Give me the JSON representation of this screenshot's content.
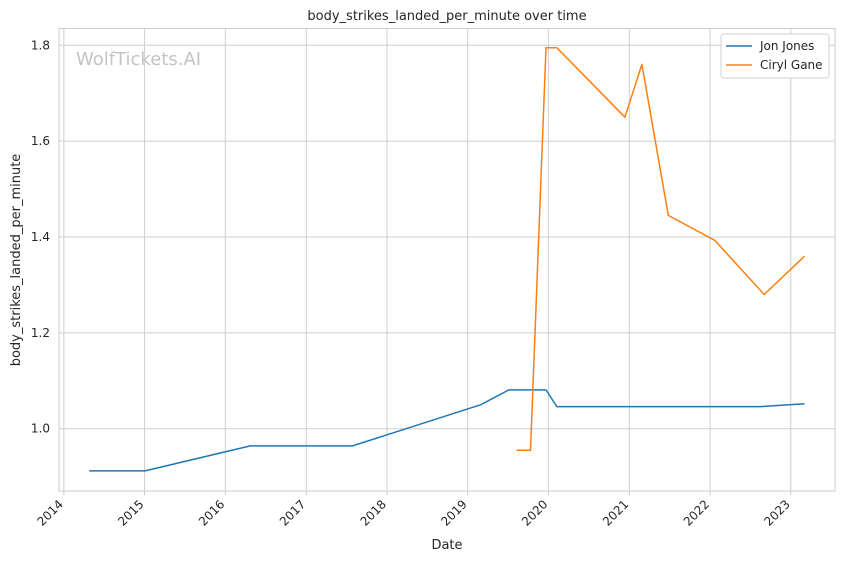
{
  "chart_data": {
    "type": "line",
    "title": "body_strikes_landed_per_minute over time",
    "xlabel": "Date",
    "ylabel": "body_strikes_landed_per_minute",
    "watermark": "WolfTickets.AI",
    "xlim": [
      "2013-12-10",
      "2023-07-20"
    ],
    "ylim": [
      0.87,
      1.835
    ],
    "x_ticks": [
      "2014-01-01",
      "2015-01-01",
      "2016-01-01",
      "2017-01-01",
      "2018-01-01",
      "2019-01-01",
      "2020-01-01",
      "2021-01-01",
      "2022-01-01",
      "2023-01-01"
    ],
    "x_tick_labels": [
      "2014",
      "2015",
      "2016",
      "2017",
      "2018",
      "2019",
      "2020",
      "2021",
      "2022",
      "2023"
    ],
    "y_ticks": [
      1.0,
      1.2,
      1.4,
      1.6,
      1.8
    ],
    "y_tick_labels": [
      "1.0",
      "1.2",
      "1.4",
      "1.6",
      "1.8"
    ],
    "grid": true,
    "legend_position": "top-right",
    "series": [
      {
        "name": "Jon Jones",
        "color": "#1f77b4",
        "x": [
          "2014-04-26",
          "2015-01-03",
          "2016-04-23",
          "2017-07-29",
          "2019-03-02",
          "2019-07-06",
          "2019-12-21",
          "2020-02-08",
          "2022-08-20",
          "2023-03-04"
        ],
        "y": [
          0.912,
          0.912,
          0.964,
          0.964,
          1.05,
          1.081,
          1.081,
          1.046,
          1.046,
          1.052
        ]
      },
      {
        "name": "Ciryl Gane",
        "color": "#ff7f0e",
        "x": [
          "2019-08-10",
          "2019-10-12",
          "2019-12-21",
          "2020-02-08",
          "2020-12-12",
          "2021-02-27",
          "2021-06-26",
          "2022-01-22",
          "2022-09-03",
          "2023-03-04"
        ],
        "y": [
          0.955,
          0.955,
          1.795,
          1.795,
          1.65,
          1.76,
          1.445,
          1.393,
          1.28,
          1.36
        ]
      }
    ]
  }
}
